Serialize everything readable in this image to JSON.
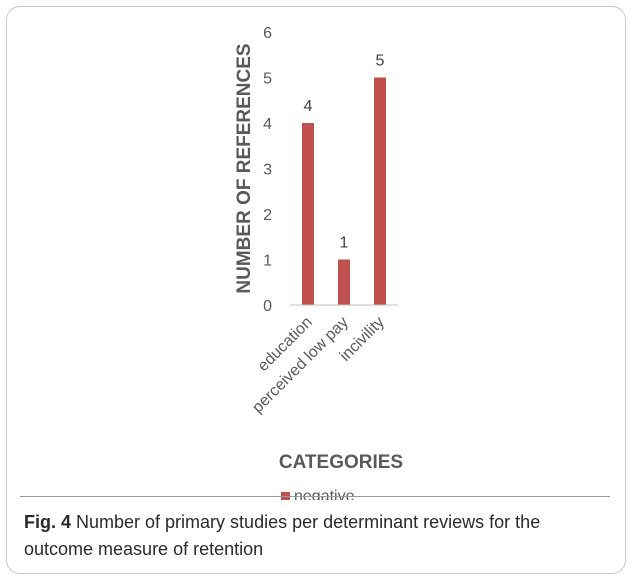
{
  "chart_data": {
    "type": "bar",
    "categories": [
      "education",
      "perceived low pay",
      "incivility"
    ],
    "series": [
      {
        "name": "negative",
        "values": [
          4,
          1,
          5
        ],
        "color": "#c0504d"
      }
    ],
    "xlabel": "CATEGORIES",
    "ylabel": "NUMBER OF REFERENCES",
    "ylim": [
      0,
      6
    ],
    "yticks": [
      0,
      1,
      2,
      3,
      4,
      5,
      6
    ],
    "grid": false,
    "legend": "bottom",
    "data_labels": true
  },
  "caption": {
    "label": "Fig. 4",
    "text": " Number of primary studies per determinant reviews for the outcome measure of retention"
  }
}
